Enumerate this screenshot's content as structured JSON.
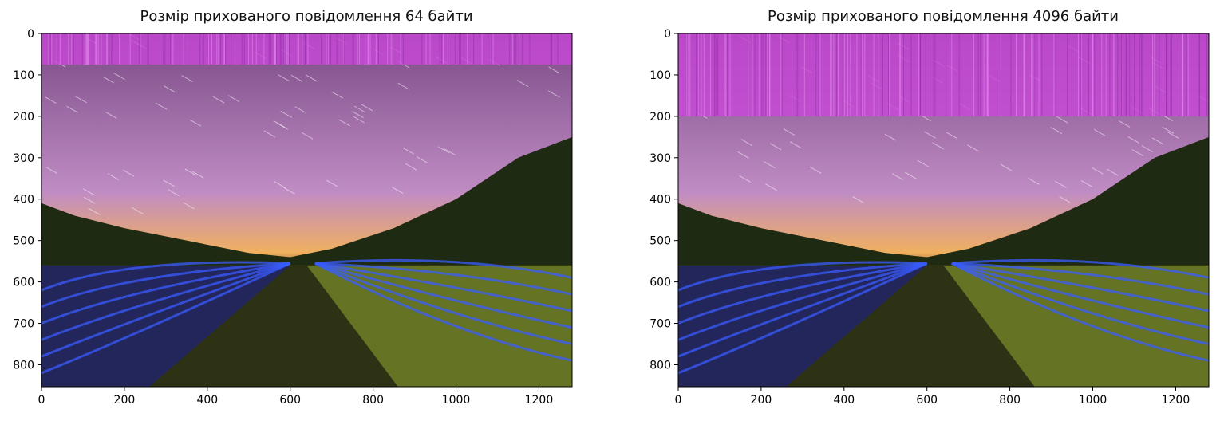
{
  "chart_data": [
    {
      "type": "image",
      "title": "Розмір прихованого повідомлення 64 байти",
      "xlim": [
        0,
        1280
      ],
      "ylim": [
        853,
        0
      ],
      "xticks": [
        0,
        200,
        400,
        600,
        800,
        1000,
        1200
      ],
      "yticks": [
        0,
        100,
        200,
        300,
        400,
        500,
        600,
        700,
        800
      ],
      "hidden_band_rows": [
        0,
        75
      ],
      "hidden_band_color": "#c848d8"
    },
    {
      "type": "image",
      "title": "Розмір прихованого повідомлення 4096 байти",
      "xlim": [
        0,
        1280
      ],
      "ylim": [
        853,
        0
      ],
      "xticks": [
        0,
        200,
        400,
        600,
        800,
        1000,
        1200
      ],
      "yticks": [
        0,
        100,
        200,
        300,
        400,
        500,
        600,
        700,
        800
      ],
      "hidden_band_rows": [
        0,
        200
      ],
      "hidden_band_color": "#c848d8"
    }
  ],
  "colors": {
    "sky_top": "#7a4a86",
    "sky_mid": "#c08cc4",
    "horizon": "#f0b060",
    "trees": "#1f2a12",
    "light_trails": "#3a5cff",
    "grass": "#7d8f2c"
  }
}
